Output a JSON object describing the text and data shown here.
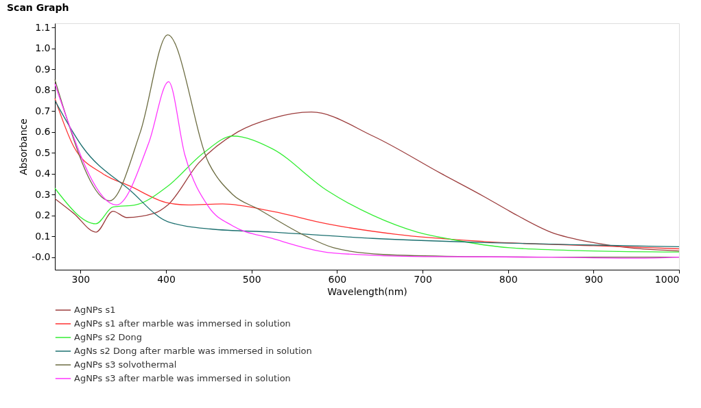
{
  "chart_data": {
    "type": "line",
    "title": "Scan Graph",
    "xlabel": "Wavelength(nm)",
    "ylabel": "Absorbance",
    "xlim": [
      270,
      1000
    ],
    "xticks": [
      300,
      400,
      500,
      600,
      700,
      800,
      900,
      1000
    ],
    "ylim": [
      -0.06,
      1.12
    ],
    "yticks": [
      {
        "value": 0,
        "label": "-0.0"
      },
      0.1,
      0.2,
      0.3,
      0.4,
      0.5,
      0.6,
      0.7,
      0.8,
      0.9,
      {
        "value": 1,
        "label": "1.0"
      },
      1.1
    ],
    "grid": false,
    "legend": "bottom",
    "marker": "none",
    "line_style": "solid",
    "series": [
      {
        "name": "AgNPs s1",
        "color": "#9b3b3b",
        "x": [
          270,
          292,
          318,
          338,
          354,
          386,
          402,
          438,
          484,
          524,
          570,
          642,
          722,
          772,
          802,
          850,
          902,
          942,
          1000
        ],
        "values": [
          0.28,
          0.21,
          0.12,
          0.22,
          0.19,
          0.21,
          0.25,
          0.45,
          0.6,
          0.665,
          0.695,
          0.58,
          0.4,
          0.29,
          0.22,
          0.12,
          0.068,
          0.045,
          0.03
        ]
      },
      {
        "name": "AgNPs s1 after marble was immersed in solution",
        "color": "#ff3030",
        "x": [
          270,
          292,
          326,
          358,
          402,
          426,
          466,
          524,
          588,
          668,
          772,
          900,
          1000
        ],
        "values": [
          0.76,
          0.53,
          0.4,
          0.34,
          0.26,
          0.25,
          0.255,
          0.22,
          0.16,
          0.11,
          0.075,
          0.055,
          0.04
        ]
      },
      {
        "name": "AgNPs s2 Dong",
        "color": "#33ee33",
        "x": [
          270,
          318,
          338,
          364,
          402,
          444,
          478,
          524,
          588,
          642,
          694,
          734,
          802,
          900,
          1000
        ],
        "values": [
          0.33,
          0.16,
          0.24,
          0.25,
          0.34,
          0.5,
          0.58,
          0.52,
          0.32,
          0.2,
          0.12,
          0.085,
          0.045,
          0.03,
          0.025
        ]
      },
      {
        "name": "AgNs s2 Dong after marble was immersed in solution",
        "color": "#1b6f6f",
        "x": [
          270,
          302,
          358,
          402,
          452,
          524,
          642,
          772,
          900,
          1000
        ],
        "values": [
          0.75,
          0.53,
          0.32,
          0.17,
          0.135,
          0.12,
          0.09,
          0.07,
          0.058,
          0.05
        ]
      },
      {
        "name": "AgNPs s3 solvothermal",
        "color": "#6b6b40",
        "x": [
          270,
          334,
          370,
          402,
          450,
          478,
          508,
          564,
          596,
          654,
          750,
          850,
          1000
        ],
        "values": [
          0.85,
          0.27,
          0.6,
          1.065,
          0.45,
          0.3,
          0.23,
          0.1,
          0.045,
          0.013,
          0.003,
          0.0,
          0.0
        ]
      },
      {
        "name": "AgNPs s3 after marble was immersed in solution",
        "color": "#ff33ff",
        "x": [
          270,
          342,
          380,
          403,
          422,
          450,
          478,
          524,
          596,
          700,
          850,
          950,
          1000
        ],
        "values": [
          0.83,
          0.25,
          0.55,
          0.84,
          0.49,
          0.24,
          0.15,
          0.09,
          0.02,
          0.003,
          0.0,
          -0.005,
          0.0
        ]
      }
    ]
  }
}
